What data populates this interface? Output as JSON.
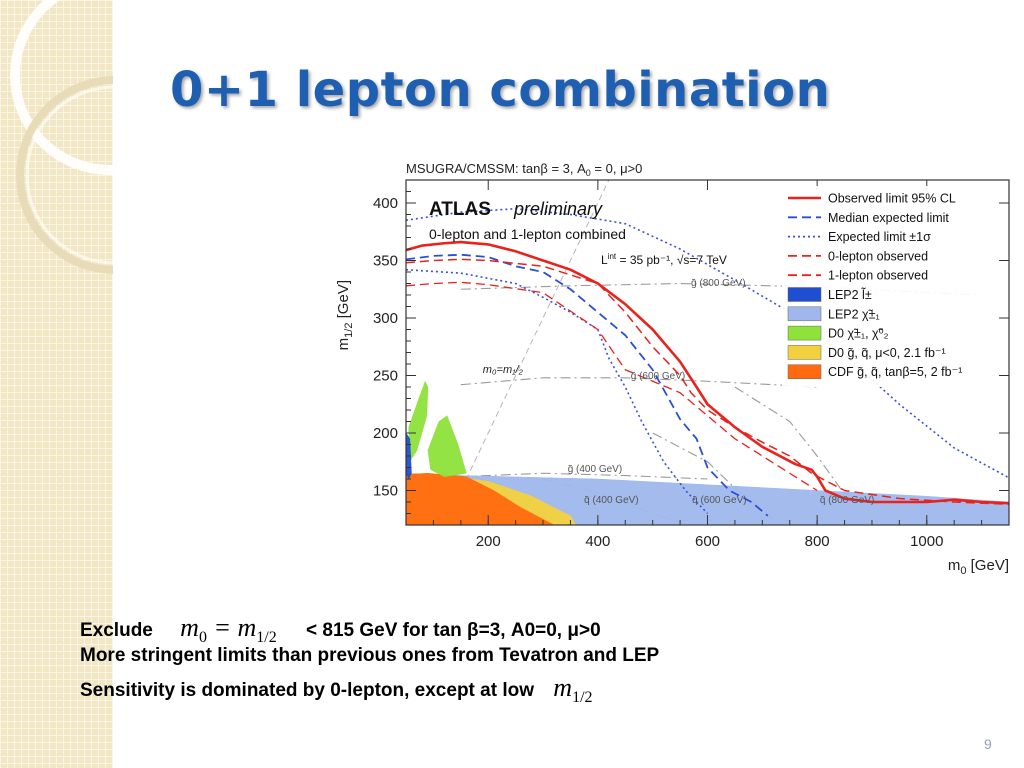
{
  "slide": {
    "title": "0+1 lepton combination",
    "page_number": "9"
  },
  "chart_data": {
    "type": "line",
    "title": "MSUGRA/CMSSM: tanβ = 3, A",
    "title_sub": "0",
    "title_tail": " = 0, μ>0",
    "experiment": "ATLAS",
    "status": "preliminary",
    "subtitle": "0-lepton and 1-lepton combined",
    "lumi_text": "L",
    "lumi_sup": "int",
    "lumi_tail": " = 35 pb⁻¹, √s=7 TeV",
    "xlabel": "m",
    "xlabel_sub": "0",
    "xlabel_tail": " [GeV]",
    "ylabel": "m",
    "ylabel_sub": "1/2",
    "ylabel_tail": " [GeV]",
    "xlim": [
      50,
      1150
    ],
    "ylim": [
      120,
      420
    ],
    "xticks": [
      200,
      400,
      600,
      800,
      1000
    ],
    "yticks": [
      150,
      200,
      250,
      300,
      350,
      400
    ],
    "diagonal_label": "m₀=m₁/₂",
    "series": [
      {
        "name": "Observed limit 95% CL",
        "color": "#e8231c",
        "style": "solid",
        "width": 2.6,
        "x": [
          50,
          80,
          120,
          150,
          200,
          250,
          300,
          350,
          400,
          450,
          500,
          550,
          580,
          600,
          650,
          700,
          760,
          790,
          800,
          815,
          850,
          900,
          950,
          1000,
          1050,
          1100,
          1150
        ],
        "y": [
          359,
          363,
          365,
          366,
          364,
          358,
          350,
          342,
          330,
          312,
          290,
          262,
          240,
          225,
          205,
          188,
          173,
          168,
          162,
          150,
          143,
          140,
          140,
          140,
          142,
          140,
          139
        ]
      },
      {
        "name": "Median expected limit",
        "color": "#2a4fd6",
        "style": "dash",
        "width": 1.8,
        "x": [
          50,
          100,
          150,
          200,
          250,
          300,
          350,
          400,
          450,
          500,
          550,
          580,
          600,
          640,
          680,
          710
        ],
        "y": [
          351,
          354,
          355,
          353,
          345,
          340,
          325,
          305,
          285,
          255,
          212,
          195,
          170,
          150,
          140,
          128
        ]
      },
      {
        "name": "Expected limit ±1σ",
        "color": "#3a4fe0",
        "style": "dot",
        "width": 1.6,
        "x": [
          50,
          150,
          250,
          350,
          450,
          550,
          650,
          750,
          850,
          950,
          1050,
          1150
        ],
        "y": [
          385,
          392,
          395,
          390,
          382,
          360,
          333,
          305,
          268,
          225,
          187,
          161
        ]
      },
      {
        "name": "Expected limit ±1σ",
        "color": "#3a4fe0",
        "style": "dot",
        "width": 1.6,
        "x": [
          50,
          150,
          250,
          300,
          350,
          400,
          420,
          450,
          480,
          520,
          560,
          580,
          600
        ],
        "y": [
          342,
          339,
          330,
          318,
          305,
          290,
          265,
          240,
          210,
          175,
          150,
          140,
          130
        ]
      },
      {
        "name": "0-lepton observed",
        "color": "#e8231c",
        "style": "dash",
        "width": 1.5,
        "x": [
          50,
          100,
          150,
          200,
          300,
          400,
          450,
          500,
          550,
          570,
          600,
          650,
          700,
          750,
          790,
          850,
          950,
          1050,
          1150
        ],
        "y": [
          348,
          350,
          351,
          350,
          345,
          330,
          305,
          275,
          250,
          235,
          220,
          205,
          192,
          180,
          165,
          150,
          143,
          140,
          138
        ]
      },
      {
        "name": "1-lepton observed",
        "color": "#e8231c",
        "style": "dash",
        "width": 1.3,
        "x": [
          50,
          100,
          150,
          200,
          300,
          400,
          450,
          500,
          550,
          600,
          650,
          700,
          750,
          800
        ],
        "y": [
          328,
          330,
          331,
          329,
          322,
          290,
          255,
          245,
          235,
          215,
          195,
          180,
          165,
          150
        ]
      }
    ],
    "legend": [
      {
        "label": "Observed limit 95% CL",
        "kind": "line",
        "color": "#e8231c",
        "style": "solid"
      },
      {
        "label": "Median expected limit",
        "kind": "line",
        "color": "#2a4fd6",
        "style": "dash"
      },
      {
        "label": "Expected limit ±1σ",
        "kind": "line",
        "color": "#3a4fe0",
        "style": "dot"
      },
      {
        "label": "0-lepton observed",
        "kind": "line",
        "color": "#e8231c",
        "style": "dash"
      },
      {
        "label": "1-lepton observed",
        "kind": "line",
        "color": "#e8231c",
        "style": "dash"
      },
      {
        "label": "LEP2 l̃±",
        "kind": "box",
        "color": "#1f4fd0"
      },
      {
        "label": "LEP2 χ̃±₁",
        "kind": "box",
        "color": "#9fb7ec"
      },
      {
        "label": "D0 χ̃±₁, χ̃⁰₂",
        "kind": "box",
        "color": "#8ee23a"
      },
      {
        "label": "D0 g̃, q̃, μ<0, 2.1 fb⁻¹",
        "kind": "box",
        "color": "#f3d13e"
      },
      {
        "label": "CDF g̃, q̃, tanβ=5, 2 fb⁻¹",
        "kind": "box",
        "color": "#ff6a10"
      }
    ],
    "regions": [
      {
        "name": "LEP2 χ̃±₁",
        "color": "#9fb7ec",
        "x": [
          50,
          150,
          400,
          600,
          800,
          1000,
          1150,
          1150,
          50
        ],
        "y": [
          165,
          163,
          160,
          155,
          150,
          145,
          140,
          120,
          120
        ]
      },
      {
        "name": "D0 g̃, q̃, μ<0, 2.1 fb⁻¹",
        "color": "#f3d13e",
        "x": [
          50,
          120,
          200,
          280,
          320,
          350,
          360,
          50
        ],
        "y": [
          165,
          163,
          158,
          145,
          135,
          128,
          120,
          120
        ]
      },
      {
        "name": "CDF g̃, q̃, tanβ=5, 2 fb⁻¹",
        "color": "#ff6a10",
        "x": [
          50,
          90,
          160,
          210,
          260,
          320,
          50
        ],
        "y": [
          164,
          165,
          162,
          150,
          135,
          120,
          120
        ]
      },
      {
        "name": "D0 χ̃±₁, χ̃⁰₂",
        "color": "#8ee23a",
        "x": [
          55,
          75,
          85,
          90,
          88,
          70,
          57
        ],
        "y": [
          205,
          232,
          245,
          240,
          215,
          185,
          175
        ]
      },
      {
        "name": "D0 χ̃±₁, χ̃⁰₂",
        "color": "#8ee23a",
        "x": [
          90,
          110,
          125,
          145,
          160,
          120,
          95
        ],
        "y": [
          185,
          210,
          215,
          190,
          165,
          162,
          168
        ]
      },
      {
        "name": "LEP2 l̃±",
        "color": "#1f4fd0",
        "x": [
          50,
          57,
          60,
          55,
          50
        ],
        "y": [
          200,
          195,
          165,
          160,
          165
        ]
      }
    ],
    "iso_mass_curves": [
      {
        "label": "q̃ (400 GeV)",
        "x": [
          300,
          400,
          500,
          600
        ],
        "y": [
          160,
          148,
          130,
          115
        ]
      },
      {
        "label": "q̃ (600 GeV)",
        "x": [
          500,
          600,
          650,
          720
        ],
        "y": [
          200,
          175,
          152,
          125
        ]
      },
      {
        "label": "q̃ (800 GeV)",
        "x": [
          650,
          750,
          800,
          860
        ],
        "y": [
          240,
          210,
          180,
          140
        ]
      },
      {
        "label": "g̃ (400 GeV)",
        "x": [
          150,
          300,
          450,
          600
        ],
        "y": [
          162,
          165,
          163,
          160
        ]
      },
      {
        "label": "g̃ (600 GeV)",
        "x": [
          150,
          300,
          450,
          600,
          800
        ],
        "y": [
          242,
          248,
          248,
          245,
          240
        ]
      },
      {
        "label": "g̃ (800 GeV)",
        "x": [
          150,
          350,
          550,
          800,
          1100
        ],
        "y": [
          325,
          328,
          330,
          327,
          320
        ]
      }
    ],
    "iso_labels": [
      {
        "text": "g̃ (800 GeV)",
        "x": 570,
        "y": 328
      },
      {
        "text": "g̃ (600 GeV)",
        "x": 460,
        "y": 247
      },
      {
        "text": "g̃ (400 GeV)",
        "x": 345,
        "y": 166
      },
      {
        "text": "q̃ (400 GeV)",
        "x": 375,
        "y": 139
      },
      {
        "text": "q̃ (600 GeV)",
        "x": 572,
        "y": 139
      },
      {
        "text": "q̃ (800 GeV)",
        "x": 805,
        "y": 139
      }
    ]
  },
  "bullets": {
    "line1_prefix": "Exclude",
    "line1_math_m": "m",
    "line1_math_sub0": "0",
    "line1_math_eq": " = m",
    "line1_math_sub12": "1/2",
    "line1_suffix": "< 815 GeV for tan  β=3, A0=0,   μ>0",
    "line2": "More stringent limits than previous ones from Tevatron and LEP",
    "line3_prefix": "Sensitivity is dominated by 0-lepton, except at low",
    "line3_math_m": "m",
    "line3_math_sub": "1/2"
  }
}
